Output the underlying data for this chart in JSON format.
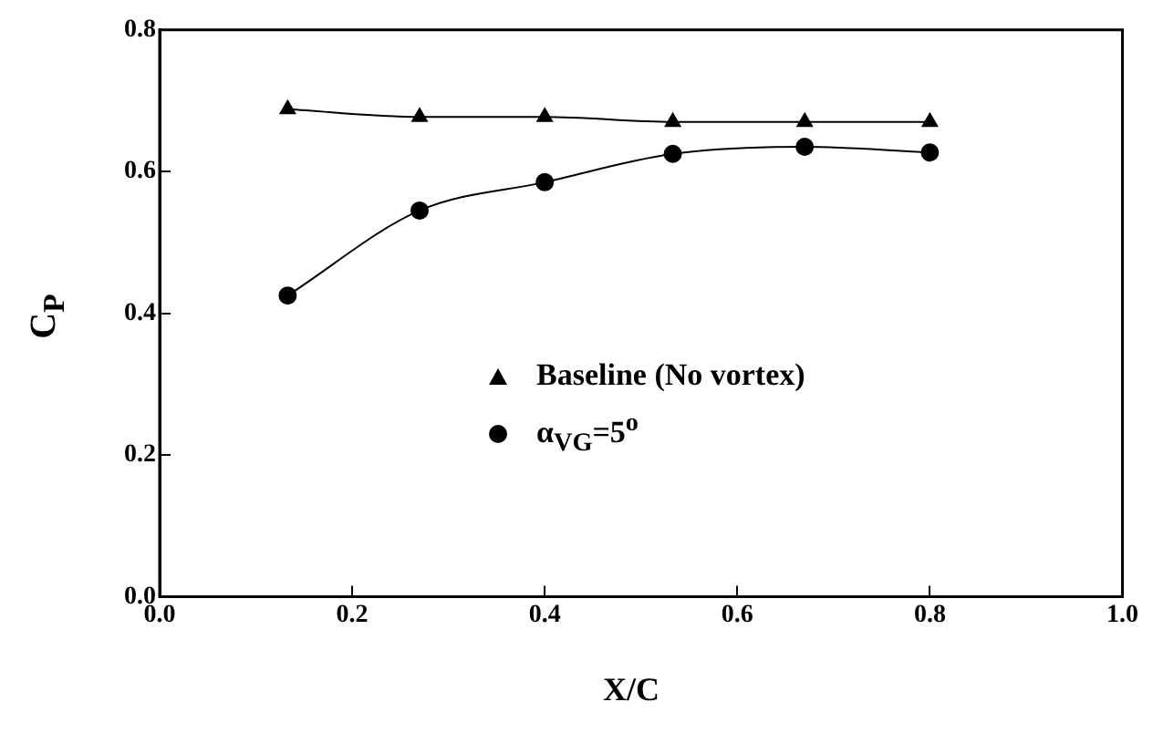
{
  "chart_data": {
    "type": "line",
    "xlabel": "X/C",
    "ylabel": "C$_{P}$",
    "x": [
      0.133,
      0.27,
      0.4,
      0.533,
      0.67,
      0.8
    ],
    "series": [
      {
        "name": "Baseline (No vortex)",
        "color": "#000000",
        "marker": "triangle",
        "values": [
          0.688,
          0.677,
          0.677,
          0.67,
          0.67,
          0.67
        ]
      },
      {
        "name": "α$_{VG}$=5$^{o}$",
        "color": "#000000",
        "marker": "circle",
        "values": [
          0.425,
          0.545,
          0.585,
          0.625,
          0.635,
          0.627
        ]
      }
    ],
    "xlim": [
      0,
      1
    ],
    "xticks": [
      {
        "value": 0,
        "label": "0.0"
      },
      0.2,
      0.4,
      0.6,
      0.8,
      {
        "value": 1,
        "label": "1.0"
      }
    ],
    "ylim": [
      0,
      0.8
    ],
    "yticks": [
      {
        "value": 0,
        "label": "0.0"
      },
      0.2,
      0.4,
      0.6,
      0.8
    ],
    "grid": false,
    "legend": "center right"
  }
}
